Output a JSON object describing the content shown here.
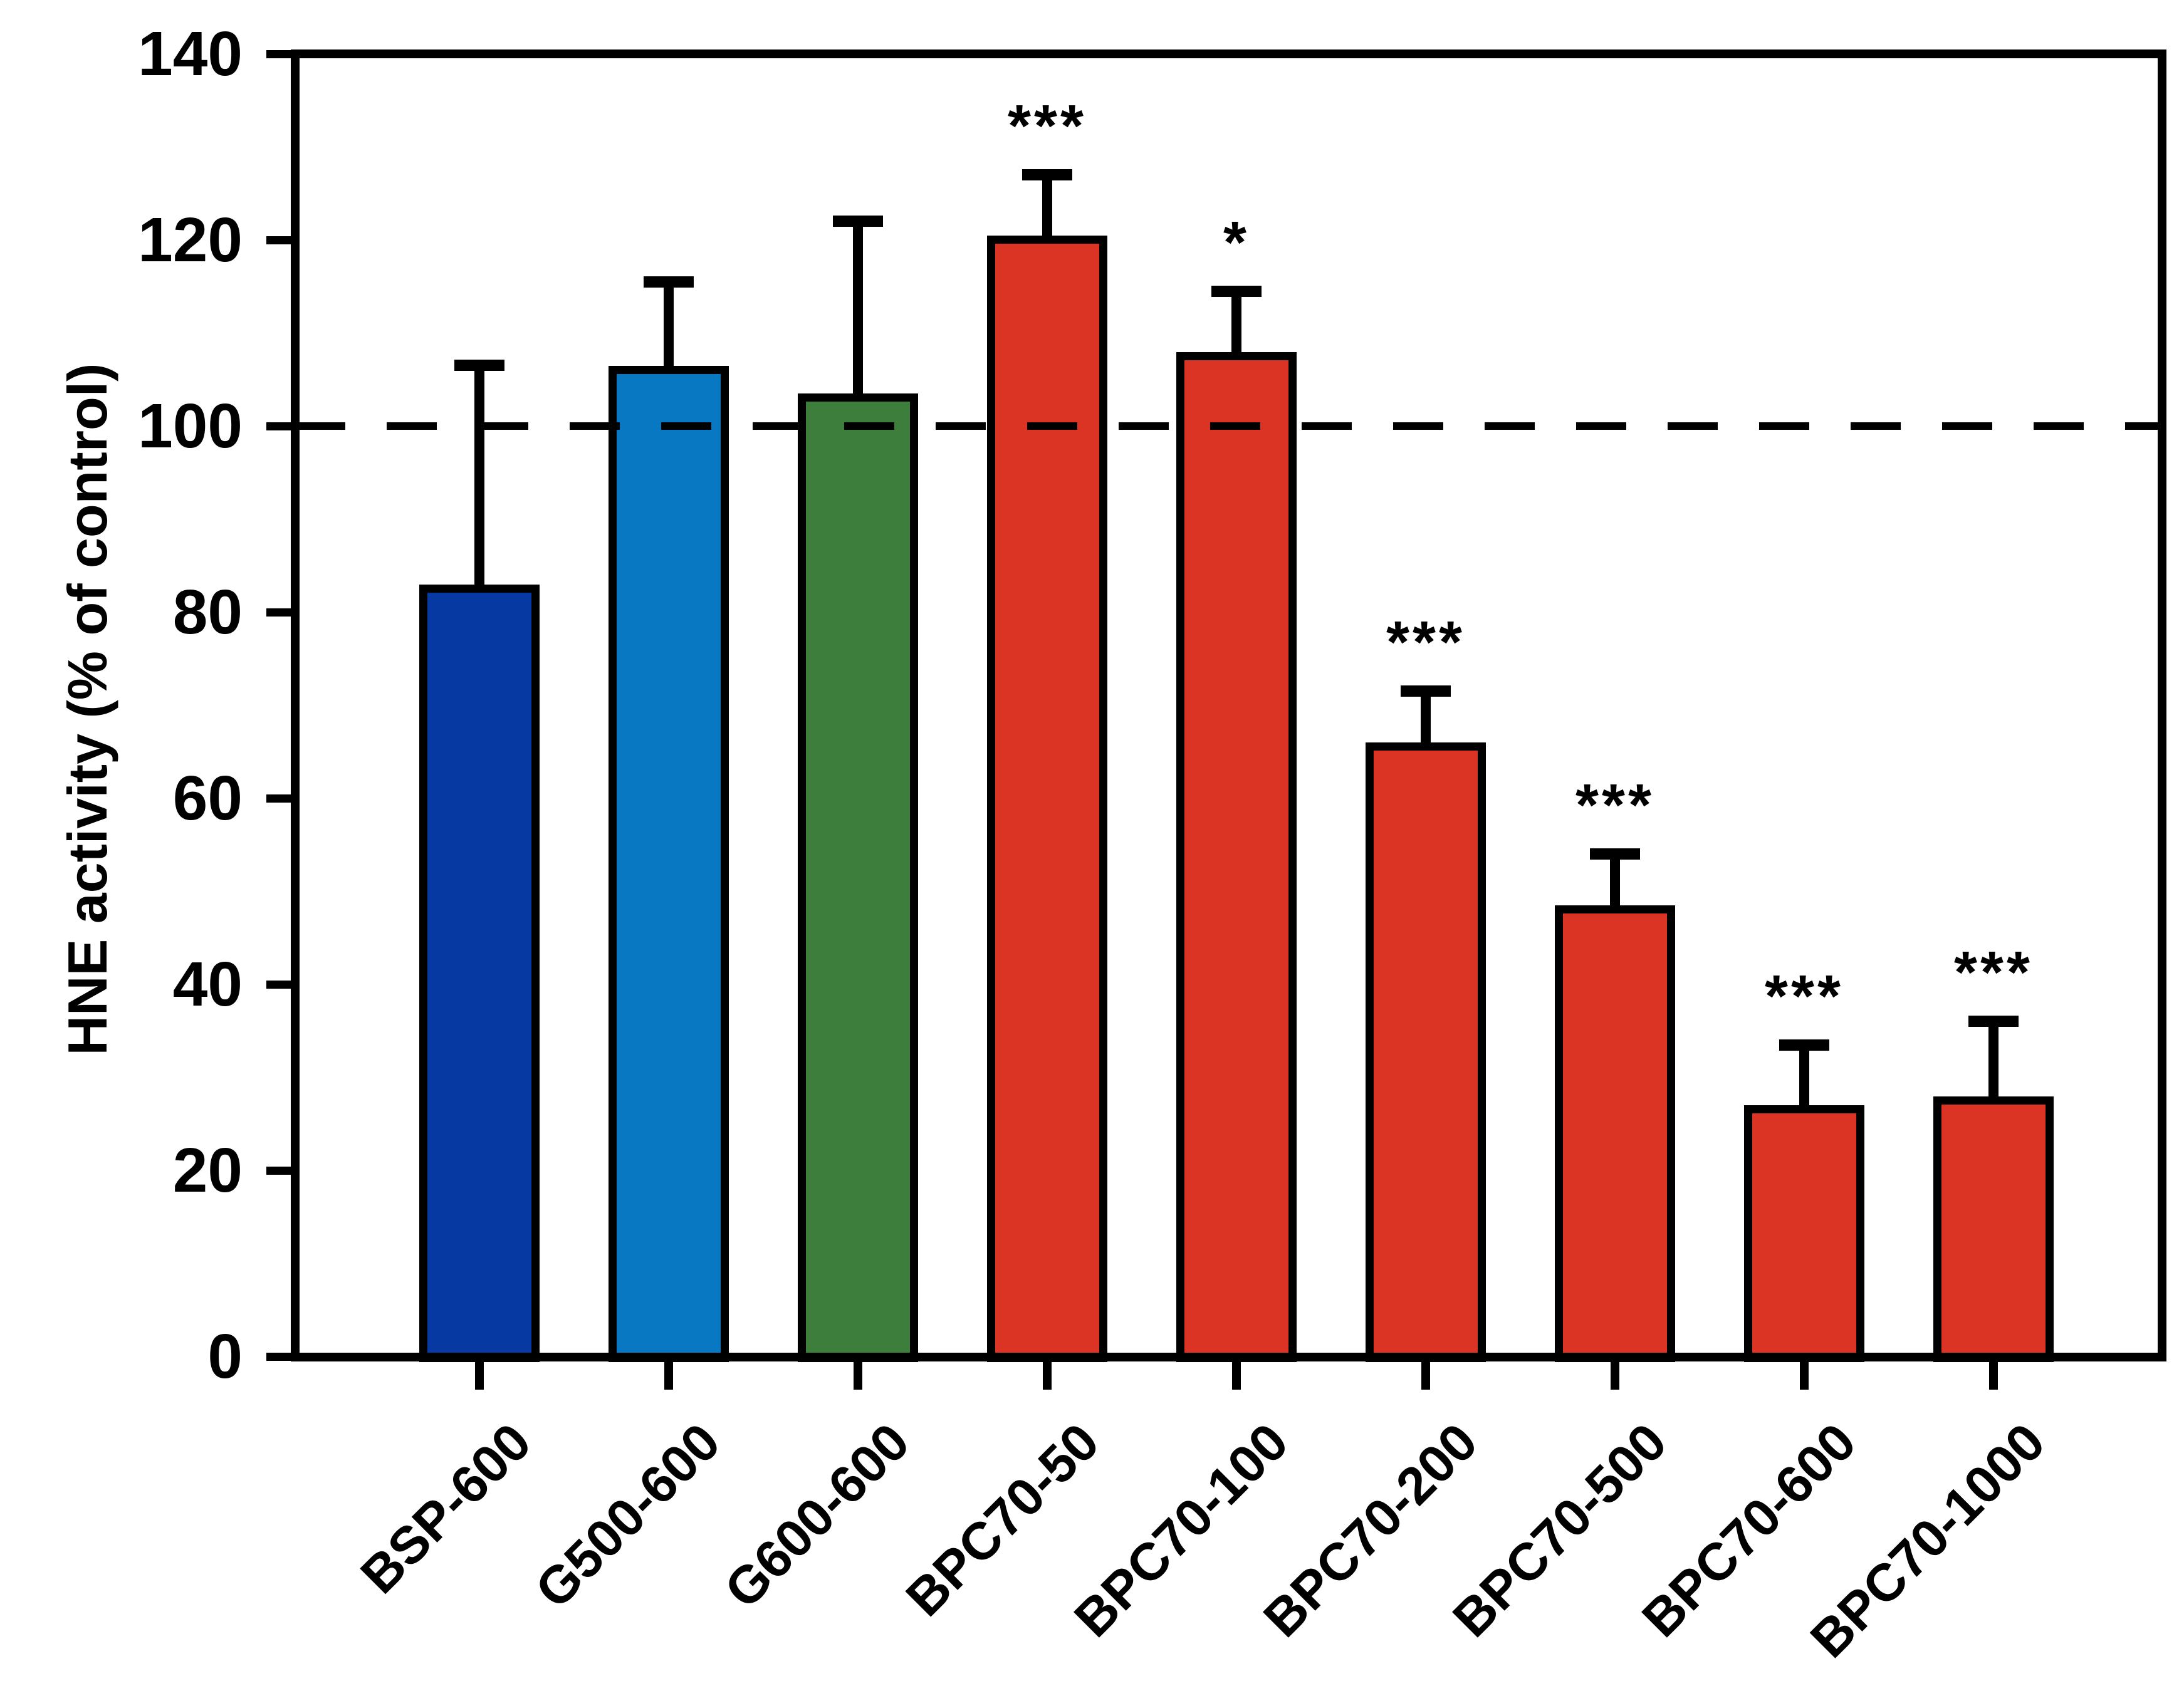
{
  "chart_data": {
    "type": "bar",
    "title": "",
    "xlabel": "",
    "ylabel": "HNE activity (% of control)",
    "ylim": [
      0,
      140
    ],
    "yticks": [
      0,
      20,
      40,
      60,
      80,
      100,
      120,
      140
    ],
    "reference_line_y": 100,
    "reference_line_style": "dashed",
    "grid": false,
    "legend": "none",
    "categories": [
      "BSP-600",
      "G500-600",
      "G600-600",
      "BPC70-50",
      "BPC70-100",
      "BPC70-200",
      "BPC70-500",
      "BPC70-600",
      "BPC70-1000"
    ],
    "values": [
      82.5,
      106,
      103,
      120,
      107.5,
      65.5,
      48,
      26.5,
      27.5
    ],
    "errors_plus": [
      24,
      9.5,
      19,
      7,
      7,
      6,
      6,
      7,
      8.5
    ],
    "significance": [
      "",
      "",
      "",
      "***",
      "*",
      "***",
      "***",
      "***",
      "***"
    ],
    "bar_colors": [
      "#0639a2",
      "#0878c2",
      "#3d7e3c",
      "#dc3424",
      "#dc3424",
      "#dc3424",
      "#dc3424",
      "#dc3424",
      "#dc3424"
    ],
    "bar_color_names": [
      "dark-blue",
      "medium-blue",
      "green",
      "red",
      "red",
      "red",
      "red",
      "red",
      "red"
    ],
    "axis_color": "#000000",
    "background_color": "#ffffff"
  }
}
